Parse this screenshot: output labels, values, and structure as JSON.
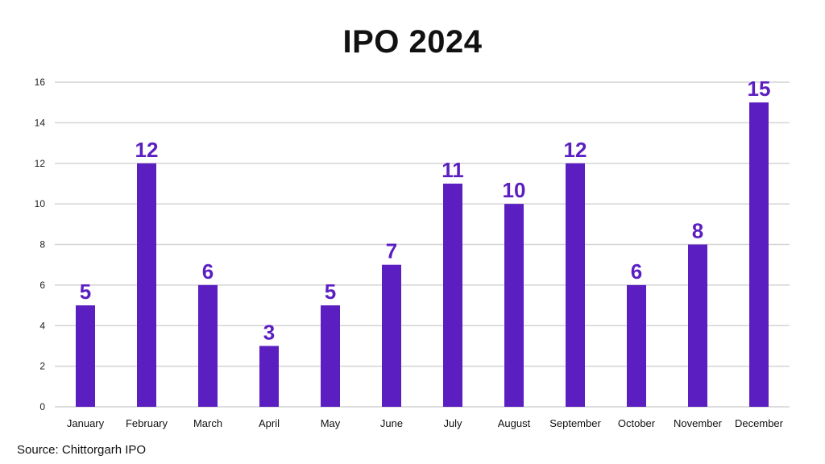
{
  "chart_data": {
    "type": "bar",
    "title": "IPO 2024",
    "categories": [
      "January",
      "February",
      "March",
      "April",
      "May",
      "June",
      "July",
      "August",
      "September",
      "October",
      "November",
      "December"
    ],
    "values": [
      5,
      12,
      6,
      3,
      5,
      7,
      11,
      10,
      12,
      6,
      8,
      15
    ],
    "ylim": [
      0,
      16
    ],
    "yticks": [
      0,
      2,
      4,
      6,
      8,
      10,
      12,
      14,
      16
    ],
    "grid": true,
    "bar_color": "#5b1fc1",
    "label_color": "#5b1fc1",
    "xlabel": "",
    "ylabel": ""
  },
  "source": "Source: Chittorgarh IPO"
}
